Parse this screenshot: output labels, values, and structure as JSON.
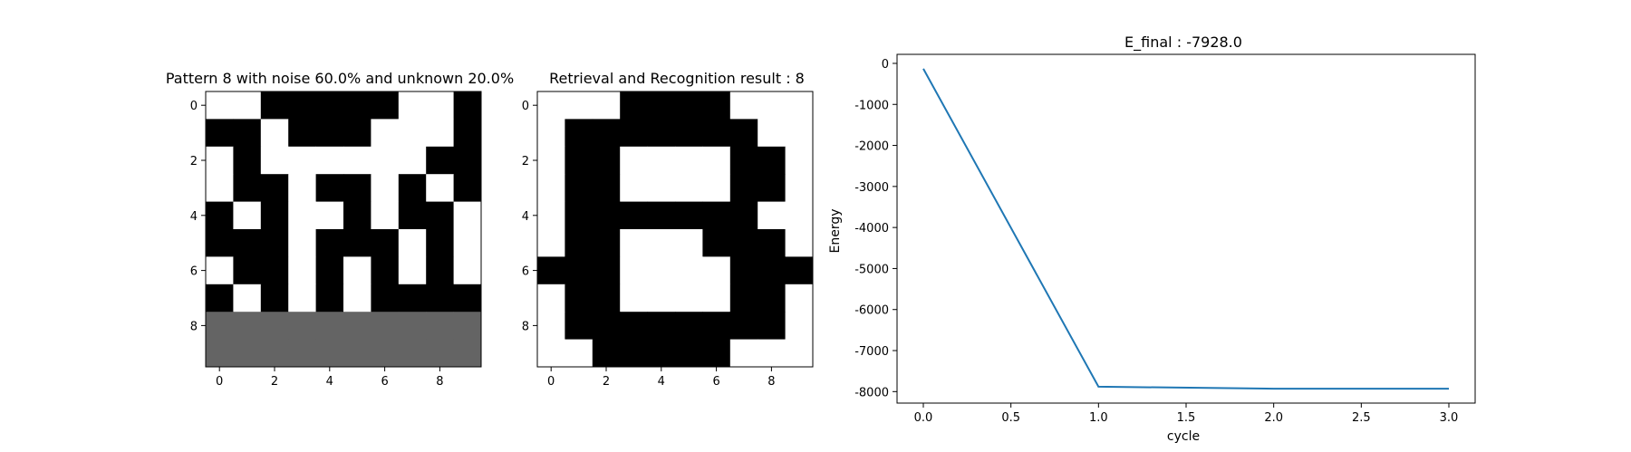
{
  "chart_data": [
    {
      "type": "heatmap",
      "title": "Pattern 8 with noise 60.0% and unknown 20.0%",
      "colormap": "gray",
      "value_colors": {
        "-1": "#000000",
        "0": "#646464",
        "1": "#ffffff"
      },
      "x_ticks": [
        "0",
        "2",
        "4",
        "6",
        "8"
      ],
      "y_ticks": [
        "0",
        "2",
        "4",
        "6",
        "8"
      ],
      "grid": [
        [
          1,
          1,
          -1,
          -1,
          -1,
          -1,
          -1,
          1,
          1,
          -1
        ],
        [
          -1,
          -1,
          1,
          -1,
          -1,
          -1,
          1,
          1,
          1,
          -1
        ],
        [
          1,
          -1,
          1,
          1,
          1,
          1,
          1,
          1,
          -1,
          -1
        ],
        [
          1,
          -1,
          -1,
          1,
          -1,
          -1,
          1,
          -1,
          1,
          -1
        ],
        [
          -1,
          1,
          -1,
          1,
          1,
          -1,
          1,
          -1,
          -1,
          1
        ],
        [
          -1,
          -1,
          -1,
          1,
          -1,
          -1,
          -1,
          1,
          -1,
          1
        ],
        [
          1,
          -1,
          -1,
          1,
          -1,
          1,
          -1,
          1,
          -1,
          1
        ],
        [
          -1,
          1,
          -1,
          1,
          -1,
          1,
          -1,
          -1,
          -1,
          -1
        ],
        [
          0,
          0,
          0,
          0,
          0,
          0,
          0,
          0,
          0,
          0
        ],
        [
          0,
          0,
          0,
          0,
          0,
          0,
          0,
          0,
          0,
          0
        ]
      ]
    },
    {
      "type": "heatmap",
      "title": "Retrieval and Recognition result : 8",
      "colormap": "gray",
      "value_colors": {
        "-1": "#000000",
        "1": "#ffffff"
      },
      "x_ticks": [
        "0",
        "2",
        "4",
        "6",
        "8"
      ],
      "y_ticks": [
        "0",
        "2",
        "4",
        "6",
        "8"
      ],
      "grid": [
        [
          1,
          1,
          1,
          -1,
          -1,
          -1,
          -1,
          1,
          1,
          1
        ],
        [
          1,
          -1,
          -1,
          -1,
          -1,
          -1,
          -1,
          -1,
          1,
          1
        ],
        [
          1,
          -1,
          -1,
          1,
          1,
          1,
          1,
          -1,
          -1,
          1
        ],
        [
          1,
          -1,
          -1,
          1,
          1,
          1,
          1,
          -1,
          -1,
          1
        ],
        [
          1,
          -1,
          -1,
          -1,
          -1,
          -1,
          -1,
          -1,
          1,
          1
        ],
        [
          1,
          -1,
          -1,
          1,
          1,
          1,
          -1,
          -1,
          -1,
          1
        ],
        [
          -1,
          -1,
          -1,
          1,
          1,
          1,
          1,
          -1,
          -1,
          -1
        ],
        [
          1,
          -1,
          -1,
          1,
          1,
          1,
          1,
          -1,
          -1,
          1
        ],
        [
          1,
          -1,
          -1,
          -1,
          -1,
          -1,
          -1,
          -1,
          -1,
          1
        ],
        [
          1,
          1,
          -1,
          -1,
          -1,
          -1,
          -1,
          1,
          1,
          1
        ]
      ]
    },
    {
      "type": "line",
      "title": "E_final : -7928.0",
      "xlabel": "cycle",
      "ylabel": "Energy",
      "xlim": [
        -0.15,
        3.15
      ],
      "ylim": [
        -8280,
        220
      ],
      "x_ticks": [
        "0.0",
        "0.5",
        "1.0",
        "1.5",
        "2.0",
        "2.5",
        "3.0"
      ],
      "y_ticks": [
        "0",
        "-1000",
        "-2000",
        "-3000",
        "-4000",
        "-5000",
        "-6000",
        "-7000",
        "-8000"
      ],
      "color": "#1f77b4",
      "grid": false,
      "x": [
        0,
        1,
        2,
        3
      ],
      "y": [
        -130,
        -7880,
        -7928,
        -7928
      ]
    }
  ]
}
